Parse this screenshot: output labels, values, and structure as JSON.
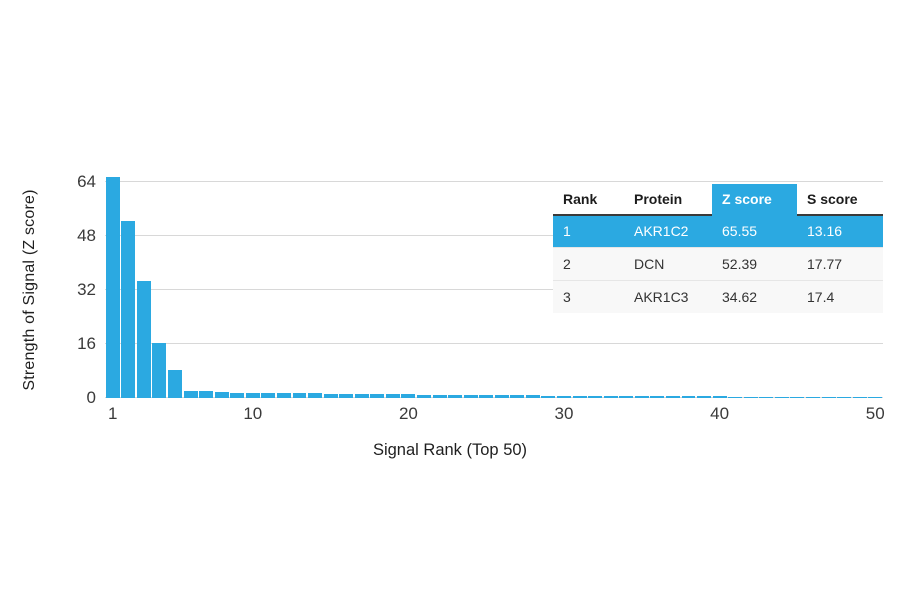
{
  "figure": {
    "background": "#ffffff",
    "accent_color": "#2BA9E1",
    "gridline_color": "#d8d8d8"
  },
  "chart_data": {
    "type": "bar",
    "title": "",
    "xlabel": "Signal Rank (Top 50)",
    "ylabel": "Strength of Signal (Z score)",
    "x": [
      1,
      2,
      3,
      4,
      5,
      6,
      7,
      8,
      9,
      10,
      11,
      12,
      13,
      14,
      15,
      16,
      17,
      18,
      19,
      20,
      21,
      22,
      23,
      24,
      25,
      26,
      27,
      28,
      29,
      30,
      31,
      32,
      33,
      34,
      35,
      36,
      37,
      38,
      39,
      40,
      41,
      42,
      43,
      44,
      45,
      46,
      47,
      48,
      49,
      50
    ],
    "values": [
      65.55,
      52.39,
      34.62,
      16.3,
      8.2,
      2.1,
      2.0,
      1.9,
      1.6,
      1.5,
      1.5,
      1.45,
      1.4,
      1.35,
      1.3,
      1.25,
      1.2,
      1.15,
      1.1,
      1.05,
      1.0,
      0.95,
      0.92,
      0.9,
      0.87,
      0.84,
      0.8,
      0.77,
      0.74,
      0.7,
      0.67,
      0.64,
      0.61,
      0.58,
      0.56,
      0.54,
      0.52,
      0.5,
      0.48,
      0.46,
      0.44,
      0.42,
      0.4,
      0.38,
      0.36,
      0.35,
      0.34,
      0.33,
      0.32,
      0.3
    ],
    "xticks": [
      1,
      10,
      20,
      30,
      40,
      50
    ],
    "yticks": [
      0,
      16,
      32,
      48,
      64
    ],
    "ylim": [
      0,
      68
    ],
    "xlim": [
      1,
      50
    ],
    "grid": "horizontal",
    "legend": "none",
    "bar_color": "#2BA9E1"
  },
  "table": {
    "columns": [
      "Rank",
      "Protein",
      "Z score",
      "S score"
    ],
    "highlighted_column_index": 2,
    "highlighted_row_index": 0,
    "highlight_color": "#2BA9E1",
    "rows": [
      [
        "1",
        "AKR1C2",
        "65.55",
        "13.16"
      ],
      [
        "2",
        "DCN",
        "52.39",
        "17.77"
      ],
      [
        "3",
        "AKR1C3",
        "34.62",
        "17.4"
      ]
    ]
  }
}
